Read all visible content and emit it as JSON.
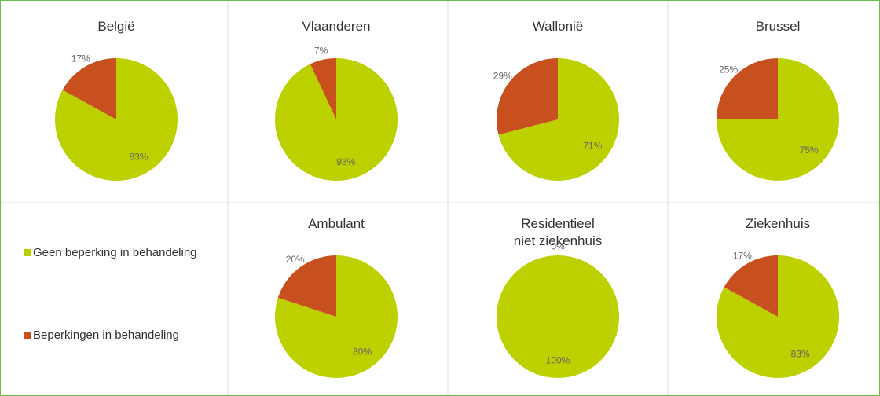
{
  "legend": [
    {
      "label": "Geen beperking in behandeling",
      "color": "#bdd000"
    },
    {
      "label": "Beperkingen in behandeling",
      "color": "#c8501e"
    }
  ],
  "chart_data": [
    {
      "type": "pie",
      "title": "België",
      "values": [
        83,
        17
      ],
      "value_labels": [
        "83%",
        "17%"
      ]
    },
    {
      "type": "pie",
      "title": "Vlaanderen",
      "values": [
        93,
        7
      ],
      "value_labels": [
        "93%",
        "7%"
      ]
    },
    {
      "type": "pie",
      "title": "Wallonië",
      "values": [
        71,
        29
      ],
      "value_labels": [
        "71%",
        "29%"
      ]
    },
    {
      "type": "pie",
      "title": "Brussel",
      "values": [
        75,
        25
      ],
      "value_labels": [
        "75%",
        "25%"
      ]
    },
    {
      "type": "pie",
      "title": "Ambulant",
      "values": [
        80,
        20
      ],
      "value_labels": [
        "80%",
        "20%"
      ]
    },
    {
      "type": "pie",
      "title": "Residentieel\nniet ziekenhuis",
      "values": [
        100,
        0
      ],
      "value_labels": [
        "100%",
        "0%"
      ]
    },
    {
      "type": "pie",
      "title": "Ziekenhuis",
      "values": [
        83,
        17
      ],
      "value_labels": [
        "83%",
        "17%"
      ]
    }
  ]
}
